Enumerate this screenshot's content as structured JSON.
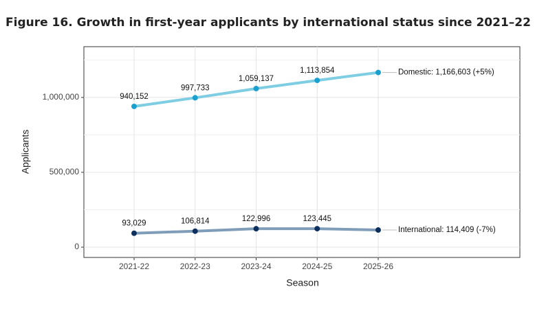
{
  "chart_data": {
    "type": "line",
    "title": "Figure 16. Growth in first-year applicants by international status since 2021–22",
    "x_label": "Season",
    "y_label": "Applicants",
    "categories": [
      "2021-22",
      "2022-23",
      "2023-24",
      "2024-25",
      "2025-26"
    ],
    "series": [
      {
        "name": "Domestic",
        "color": "#1a9fce",
        "line_color": "#7ecde3",
        "values": [
          940152,
          997733,
          1059137,
          1113854,
          1166603
        ],
        "value_labels": [
          "940,152",
          "997,733",
          "1,059,137",
          "1,113,854",
          null
        ],
        "end_label": "Domestic: 1,166,603 (+5%)"
      },
      {
        "name": "International",
        "color": "#0d2f5e",
        "line_color": "#7f9cb8",
        "values": [
          93029,
          106814,
          122996,
          123445,
          114409
        ],
        "value_labels": [
          "93,029",
          "106,814",
          "122,996",
          "123,445",
          null
        ],
        "end_label": "International: 114,409 (-7%)"
      }
    ],
    "ylim": [
      -68800,
      1339000
    ],
    "yticks": [
      {
        "value": 0,
        "label": "0"
      },
      {
        "value": 500000,
        "label": "500,000"
      },
      {
        "value": 1000000,
        "label": "1,000,000"
      }
    ],
    "minor_yticks": [
      250000,
      750000,
      1250000
    ],
    "grid": true
  }
}
